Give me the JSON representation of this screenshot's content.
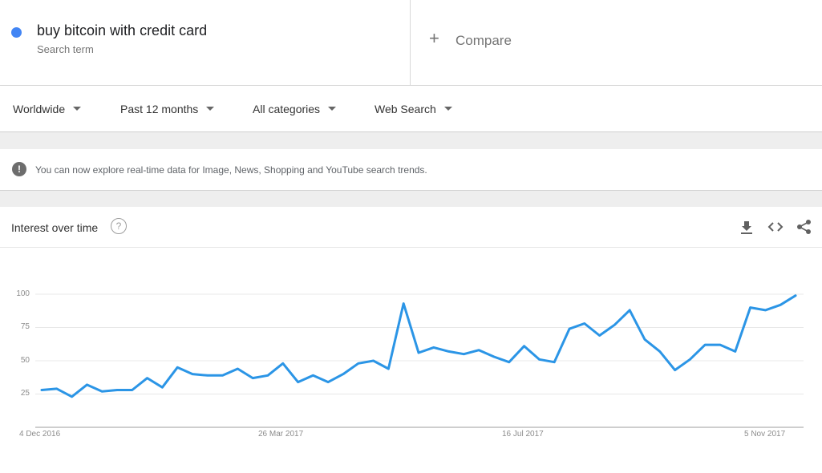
{
  "search_term": {
    "text": "buy bitcoin with credit card",
    "subtitle": "Search term",
    "color": "#4285f4"
  },
  "compare": {
    "plus": "+",
    "label": "Compare"
  },
  "filters": [
    {
      "label": "Worldwide"
    },
    {
      "label": "Past 12 months"
    },
    {
      "label": "All categories"
    },
    {
      "label": "Web Search"
    }
  ],
  "notice": {
    "icon": "!",
    "text": "You can now explore real-time data for Image, News, Shopping and YouTube search trends."
  },
  "card": {
    "title": "Interest over time",
    "help_icon": "?"
  },
  "tools": [
    "download-icon",
    "embed-icon",
    "share-icon"
  ],
  "chart_data": {
    "type": "line",
    "title": "Interest over time",
    "xlabel": "",
    "ylabel": "",
    "ylim": [
      0,
      100
    ],
    "yticks": [
      "100",
      "75",
      "50",
      "25"
    ],
    "xticks": [
      "4 Dec 2016",
      "26 Mar 2017",
      "16 Jul 2017",
      "5 Nov 2017"
    ],
    "grid": true,
    "series": [
      {
        "name": "buy bitcoin with credit card",
        "color": "#2b95e6",
        "values": [
          28,
          29,
          23,
          32,
          27,
          28,
          28,
          37,
          30,
          45,
          40,
          39,
          39,
          44,
          37,
          39,
          48,
          34,
          39,
          34,
          40,
          48,
          50,
          44,
          93,
          56,
          60,
          57,
          55,
          58,
          53,
          49,
          61,
          51,
          49,
          74,
          78,
          69,
          77,
          88,
          66,
          57,
          43,
          51,
          62,
          62,
          57,
          90,
          88,
          92,
          99
        ]
      }
    ]
  }
}
